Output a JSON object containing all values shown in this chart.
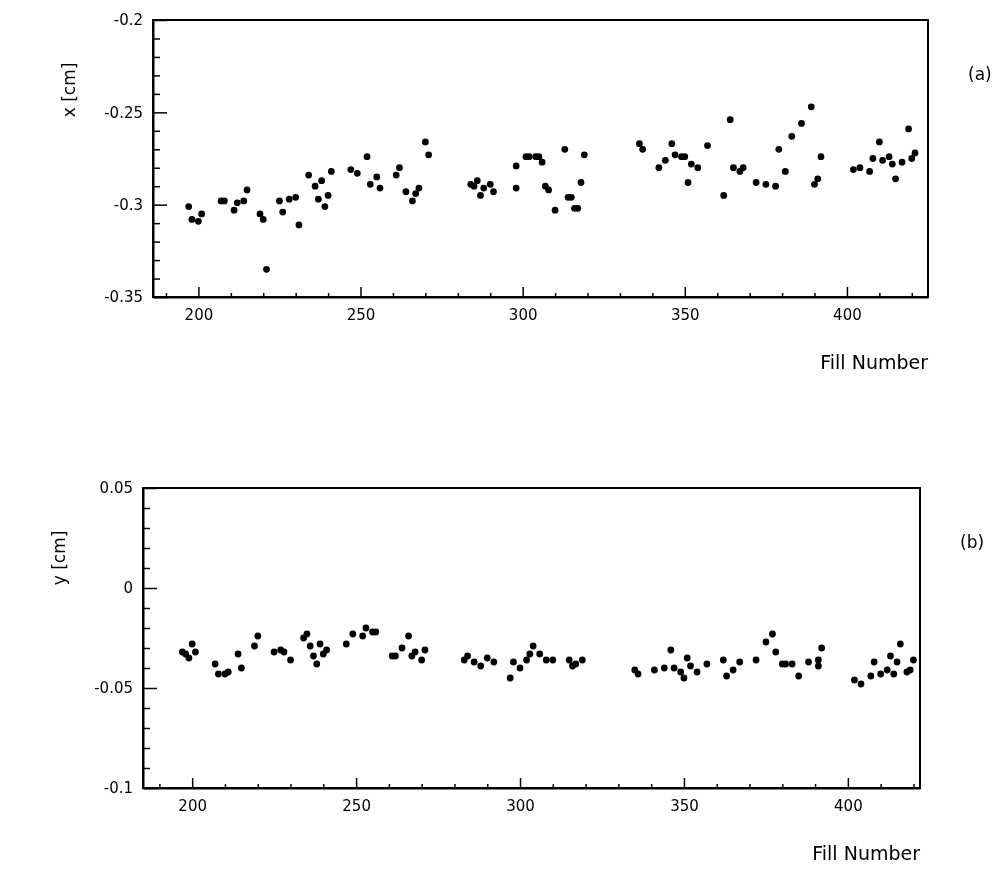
{
  "chart_data": [
    {
      "type": "scatter",
      "xlabel": "Fill Number",
      "ylabel": "x [cm]",
      "annotations": [
        "(a)"
      ],
      "marker": "circle",
      "grid": false,
      "xlim": [
        186,
        425
      ],
      "ylim": [
        -0.35,
        -0.2
      ],
      "xticks": [
        {
          "value": 190,
          "label": null
        },
        200,
        {
          "value": 210,
          "label": null
        },
        {
          "value": 220,
          "label": null
        },
        {
          "value": 230,
          "label": null
        },
        {
          "value": 240,
          "label": null
        },
        250,
        {
          "value": 260,
          "label": null
        },
        {
          "value": 270,
          "label": null
        },
        {
          "value": 280,
          "label": null
        },
        {
          "value": 290,
          "label": null
        },
        300,
        {
          "value": 310,
          "label": null
        },
        {
          "value": 320,
          "label": null
        },
        {
          "value": 330,
          "label": null
        },
        {
          "value": 340,
          "label": null
        },
        350,
        {
          "value": 360,
          "label": null
        },
        {
          "value": 370,
          "label": null
        },
        {
          "value": 380,
          "label": null
        },
        {
          "value": 390,
          "label": null
        },
        400,
        {
          "value": 410,
          "label": null
        },
        {
          "value": 420,
          "label": null
        }
      ],
      "yticks": [
        -0.35,
        {
          "value": -0.34,
          "label": null
        },
        {
          "value": -0.33,
          "label": null
        },
        {
          "value": -0.32,
          "label": null
        },
        {
          "value": -0.31,
          "label": null
        },
        -0.3,
        {
          "value": -0.29,
          "label": null
        },
        {
          "value": -0.28,
          "label": null
        },
        {
          "value": -0.27,
          "label": null
        },
        {
          "value": -0.26,
          "label": null
        },
        -0.25,
        {
          "value": -0.24,
          "label": null
        },
        {
          "value": -0.23,
          "label": null
        },
        {
          "value": -0.22,
          "label": null
        },
        {
          "value": -0.21,
          "label": null
        },
        -0.2
      ],
      "series": [
        {
          "color": "#000000",
          "x": [
            197,
            198,
            200,
            201,
            207,
            208,
            211,
            212,
            214,
            215,
            219,
            220,
            221,
            225,
            226,
            228,
            230,
            231,
            234,
            236,
            237,
            238,
            239,
            240,
            241,
            247,
            249,
            252,
            253,
            255,
            256,
            261,
            262,
            264,
            266,
            267,
            268,
            270,
            271,
            284,
            285,
            286,
            287,
            288,
            290,
            291,
            298,
            298,
            301,
            302,
            304,
            305,
            306,
            307,
            308,
            310,
            313,
            314,
            315,
            316,
            317,
            318,
            319,
            336,
            337,
            342,
            344,
            346,
            347,
            349,
            350,
            351,
            352,
            354,
            357,
            362,
            364,
            365,
            367,
            368,
            372,
            375,
            378,
            379,
            381,
            383,
            386,
            389,
            390,
            391,
            392,
            402,
            404,
            407,
            408,
            410,
            411,
            413,
            414,
            415,
            417,
            419,
            420,
            421
          ],
          "values": [
            -0.301,
            -0.308,
            -0.309,
            -0.305,
            -0.298,
            -0.298,
            -0.303,
            -0.299,
            -0.298,
            -0.292,
            -0.305,
            -0.308,
            -0.335,
            -0.298,
            -0.304,
            -0.297,
            -0.296,
            -0.311,
            -0.284,
            -0.29,
            -0.297,
            -0.287,
            -0.301,
            -0.295,
            -0.282,
            -0.281,
            -0.283,
            -0.274,
            -0.289,
            -0.285,
            -0.291,
            -0.284,
            -0.28,
            -0.293,
            -0.298,
            -0.294,
            -0.291,
            -0.266,
            -0.273,
            -0.289,
            -0.29,
            -0.287,
            -0.295,
            -0.291,
            -0.289,
            -0.293,
            -0.291,
            -0.279,
            -0.274,
            -0.274,
            -0.274,
            -0.274,
            -0.277,
            -0.29,
            -0.292,
            -0.303,
            -0.27,
            -0.296,
            -0.296,
            -0.302,
            -0.302,
            -0.288,
            -0.273,
            -0.267,
            -0.27,
            -0.28,
            -0.276,
            -0.267,
            -0.273,
            -0.274,
            -0.274,
            -0.288,
            -0.278,
            -0.28,
            -0.268,
            -0.295,
            -0.254,
            -0.28,
            -0.282,
            -0.28,
            -0.288,
            -0.289,
            -0.29,
            -0.27,
            -0.282,
            -0.263,
            -0.256,
            -0.247,
            -0.289,
            -0.286,
            -0.274,
            -0.281,
            -0.28,
            -0.282,
            -0.275,
            -0.266,
            -0.276,
            -0.274,
            -0.278,
            -0.286,
            -0.277,
            -0.259,
            -0.275,
            -0.272
          ]
        }
      ]
    },
    {
      "type": "scatter",
      "xlabel": "Fill Number",
      "ylabel": "y [cm]",
      "annotations": [
        "(b)"
      ],
      "marker": "circle",
      "grid": false,
      "xlim": [
        185,
        422
      ],
      "ylim": [
        -0.1,
        0.05
      ],
      "xticks": [
        {
          "value": 190,
          "label": null
        },
        200,
        {
          "value": 210,
          "label": null
        },
        {
          "value": 220,
          "label": null
        },
        {
          "value": 230,
          "label": null
        },
        {
          "value": 240,
          "label": null
        },
        250,
        {
          "value": 260,
          "label": null
        },
        {
          "value": 270,
          "label": null
        },
        {
          "value": 280,
          "label": null
        },
        {
          "value": 290,
          "label": null
        },
        300,
        {
          "value": 310,
          "label": null
        },
        {
          "value": 320,
          "label": null
        },
        {
          "value": 330,
          "label": null
        },
        {
          "value": 340,
          "label": null
        },
        350,
        {
          "value": 360,
          "label": null
        },
        {
          "value": 370,
          "label": null
        },
        {
          "value": 380,
          "label": null
        },
        {
          "value": 390,
          "label": null
        },
        400,
        {
          "value": 410,
          "label": null
        },
        {
          "value": 420,
          "label": null
        }
      ],
      "yticks": [
        -0.1,
        {
          "value": -0.09,
          "label": null
        },
        {
          "value": -0.08,
          "label": null
        },
        {
          "value": -0.07,
          "label": null
        },
        {
          "value": -0.06,
          "label": null
        },
        -0.05,
        {
          "value": -0.04,
          "label": null
        },
        {
          "value": -0.03,
          "label": null
        },
        {
          "value": -0.02,
          "label": null
        },
        {
          "value": -0.01,
          "label": null
        },
        0,
        {
          "value": 0.01,
          "label": null
        },
        {
          "value": 0.02,
          "label": null
        },
        {
          "value": 0.03,
          "label": null
        },
        {
          "value": 0.04,
          "label": null
        },
        0.05
      ],
      "series": [
        {
          "color": "#000000",
          "x": [
            197,
            198,
            199,
            200,
            201,
            207,
            208,
            210,
            211,
            214,
            215,
            219,
            220,
            225,
            227,
            228,
            230,
            234,
            235,
            236,
            237,
            238,
            239,
            240,
            241,
            247,
            249,
            252,
            253,
            255,
            256,
            261,
            262,
            264,
            266,
            267,
            268,
            270,
            271,
            283,
            284,
            286,
            288,
            290,
            292,
            297,
            298,
            300,
            302,
            303,
            304,
            306,
            308,
            310,
            315,
            316,
            317,
            319,
            336,
            335,
            341,
            344,
            346,
            347,
            349,
            350,
            351,
            352,
            354,
            357,
            362,
            363,
            365,
            367,
            372,
            375,
            377,
            378,
            380,
            381,
            383,
            385,
            388,
            391,
            391,
            392,
            402,
            404,
            407,
            408,
            410,
            412,
            413,
            414,
            415,
            416,
            418,
            419,
            420
          ],
          "values": [
            -0.032,
            -0.033,
            -0.035,
            -0.028,
            -0.032,
            -0.038,
            -0.043,
            -0.043,
            -0.042,
            -0.033,
            -0.04,
            -0.029,
            -0.024,
            -0.032,
            -0.031,
            -0.032,
            -0.036,
            -0.025,
            -0.023,
            -0.029,
            -0.034,
            -0.038,
            -0.028,
            -0.033,
            -0.031,
            -0.028,
            -0.023,
            -0.024,
            -0.02,
            -0.022,
            -0.022,
            -0.034,
            -0.034,
            -0.03,
            -0.024,
            -0.034,
            -0.032,
            -0.036,
            -0.031,
            -0.036,
            -0.034,
            -0.037,
            -0.039,
            -0.035,
            -0.037,
            -0.045,
            -0.037,
            -0.04,
            -0.036,
            -0.033,
            -0.029,
            -0.033,
            -0.036,
            -0.036,
            -0.036,
            -0.039,
            -0.038,
            -0.036,
            -0.043,
            -0.041,
            -0.041,
            -0.04,
            -0.031,
            -0.04,
            -0.042,
            -0.045,
            -0.035,
            -0.039,
            -0.042,
            -0.038,
            -0.036,
            -0.044,
            -0.041,
            -0.037,
            -0.036,
            -0.027,
            -0.023,
            -0.032,
            -0.038,
            -0.038,
            -0.038,
            -0.044,
            -0.037,
            -0.036,
            -0.039,
            -0.03,
            -0.046,
            -0.048,
            -0.044,
            -0.037,
            -0.043,
            -0.041,
            -0.034,
            -0.043,
            -0.037,
            -0.028,
            -0.042,
            -0.041,
            -0.036
          ]
        }
      ]
    }
  ]
}
